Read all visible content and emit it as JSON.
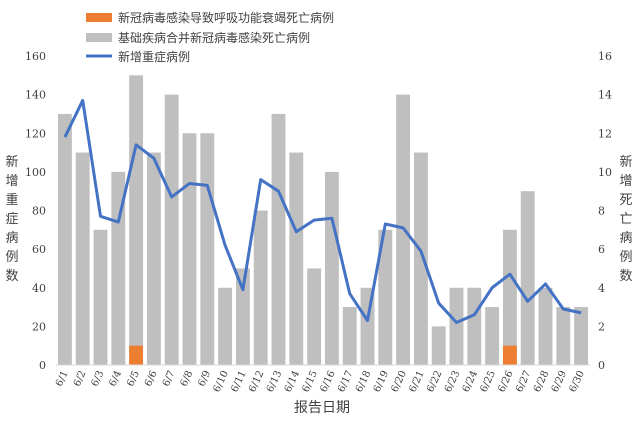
{
  "chart_data": {
    "type": "bar+line",
    "xlabel": "报告日期",
    "ylabel_left": "新增重症病例数",
    "ylabel_right": "新增死亡病例数",
    "ylim_left": [
      0,
      160
    ],
    "yticks_left": [
      "0",
      "20",
      "40",
      "60",
      "80",
      "100",
      "120",
      "140",
      "160"
    ],
    "ylim_right": [
      0,
      16
    ],
    "yticks_right": [
      "0",
      "2",
      "4",
      "6",
      "8",
      "10",
      "12",
      "14",
      "16"
    ],
    "categories": [
      "6/1",
      "6/2",
      "6/3",
      "6/4",
      "6/5",
      "6/6",
      "6/7",
      "6/8",
      "6/9",
      "6/10",
      "6/11",
      "6/12",
      "6/13",
      "6/14",
      "6/15",
      "6/16",
      "6/17",
      "6/18",
      "6/19",
      "6/20",
      "6/21",
      "6/22",
      "6/23",
      "6/24",
      "6/25",
      "6/26",
      "6/27",
      "6/28",
      "6/29",
      "6/30"
    ],
    "series": [
      {
        "name": "基础疾病合并新冠病毒感染死亡病例",
        "type": "bar",
        "axis": "right",
        "color": "#bfbfbf",
        "values": [
          13,
          11,
          7,
          10,
          15,
          11,
          14,
          12,
          12,
          4,
          5,
          8,
          13,
          11,
          5,
          10,
          3,
          4,
          7,
          14,
          11,
          2,
          4,
          4,
          3,
          7,
          9,
          4,
          3,
          3
        ]
      },
      {
        "name": "新冠病毒感染导致呼吸功能衰竭死亡病例",
        "type": "bar",
        "axis": "right",
        "color": "#ed7d31",
        "values": [
          0,
          0,
          0,
          0,
          1,
          0,
          0,
          0,
          0,
          0,
          0,
          0,
          0,
          0,
          0,
          0,
          0,
          0,
          0,
          0,
          0,
          0,
          0,
          0,
          0,
          1,
          0,
          0,
          0,
          0
        ]
      },
      {
        "name": "新增重症病例",
        "type": "line",
        "axis": "left",
        "color": "#4472c4",
        "values": [
          118,
          137,
          77,
          74,
          114,
          107,
          87,
          94,
          93,
          62,
          39,
          96,
          90,
          69,
          75,
          76,
          37,
          23,
          73,
          71,
          59,
          32,
          22,
          26,
          40,
          47,
          33,
          42,
          29,
          27
        ]
      }
    ],
    "legend_position": "top-left"
  }
}
